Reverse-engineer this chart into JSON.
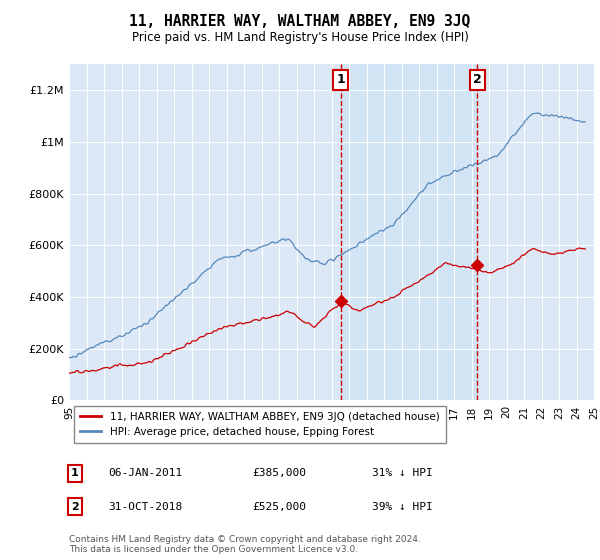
{
  "title": "11, HARRIER WAY, WALTHAM ABBEY, EN9 3JQ",
  "subtitle": "Price paid vs. HM Land Registry's House Price Index (HPI)",
  "yticks": [
    0,
    200000,
    400000,
    600000,
    800000,
    1000000,
    1200000
  ],
  "plot_bg": "#dce8f5",
  "shade_color": "#d0e4f5",
  "red_line_color": "#cc0000",
  "blue_line_color": "#5588bb",
  "vline_color": "#cc0000",
  "marker1_x": 2011.04,
  "marker2_x": 2018.83,
  "marker1_price": 385000,
  "marker2_price": 525000,
  "marker1_label": "1",
  "marker2_label": "2",
  "marker1_date": "06-JAN-2011",
  "marker1_price_str": "£385,000",
  "marker1_pct": "31% ↓ HPI",
  "marker2_date": "31-OCT-2018",
  "marker2_price_str": "£525,000",
  "marker2_pct": "39% ↓ HPI",
  "legend_label_red": "11, HARRIER WAY, WALTHAM ABBEY, EN9 3JQ (detached house)",
  "legend_label_blue": "HPI: Average price, detached house, Epping Forest",
  "footer": "Contains HM Land Registry data © Crown copyright and database right 2024.\nThis data is licensed under the Open Government Licence v3.0.",
  "xlim": [
    1995.5,
    2025.5
  ],
  "ylim": [
    0,
    1300000
  ]
}
